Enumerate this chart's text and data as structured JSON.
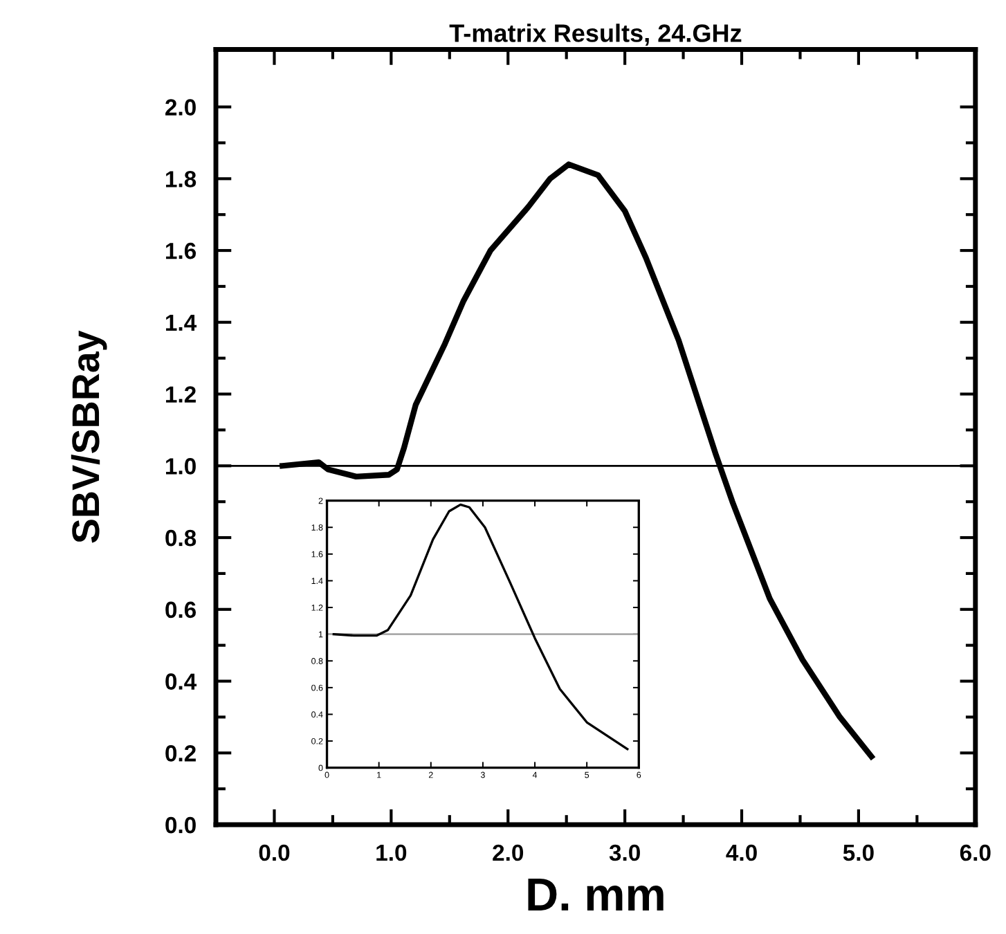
{
  "chart_data": [
    {
      "type": "line",
      "title": "T-matrix Results, 24.GHz",
      "xlabel": "D. mm",
      "ylabel": "SBV/SBRay",
      "x": [
        0.07,
        0.38,
        0.46,
        0.7,
        0.98,
        1.05,
        1.11,
        1.21,
        1.46,
        1.62,
        1.85,
        2.17,
        2.36,
        2.52,
        2.77,
        3.0,
        3.18,
        3.46,
        3.78,
        3.92,
        4.24,
        4.52,
        4.84,
        5.11
      ],
      "series": [
        {
          "color": "#000000",
          "values": [
            1.0,
            1.01,
            0.99,
            0.97,
            0.975,
            0.99,
            1.05,
            1.17,
            1.34,
            1.46,
            1.6,
            1.72,
            1.8,
            1.84,
            1.81,
            1.71,
            1.58,
            1.35,
            1.03,
            0.9,
            0.63,
            0.46,
            0.3,
            0.19
          ]
        }
      ],
      "xlim": [
        -0.5,
        6.0
      ],
      "xticks": [
        {
          "value": 0,
          "label": "0.0"
        },
        {
          "value": 1,
          "label": "1.0"
        },
        {
          "value": 2,
          "label": "2.0"
        },
        {
          "value": 3,
          "label": "3.0"
        },
        {
          "value": 4,
          "label": "4.0"
        },
        {
          "value": 5,
          "label": "5.0"
        },
        {
          "value": 6,
          "label": "6.0"
        }
      ],
      "ylim": [
        0,
        2.16
      ],
      "yticks": [
        {
          "value": 0,
          "label": "0.0"
        },
        0.2,
        0.4,
        0.6,
        0.8,
        {
          "value": 1,
          "label": "1.0"
        },
        1.2,
        1.4,
        1.6,
        1.8,
        {
          "value": 2,
          "label": "2.0"
        }
      ],
      "ref_lines": [
        {
          "axis": "y",
          "value": 1,
          "color": "#000000"
        }
      ],
      "grid": false,
      "legend": false,
      "marker": "none",
      "line_style": "solid"
    },
    {
      "type": "line",
      "x": [
        0.13,
        0.52,
        0.96,
        1.17,
        1.61,
        2.04,
        2.35,
        2.57,
        2.74,
        3.04,
        3.52,
        4.0,
        4.48,
        5.0,
        5.78
      ],
      "series": [
        {
          "color": "#000000",
          "values": [
            1.0,
            0.99,
            0.99,
            1.03,
            1.29,
            1.71,
            1.92,
            1.97,
            1.95,
            1.8,
            1.39,
            0.97,
            0.59,
            0.34,
            0.14
          ]
        }
      ],
      "xlim": [
        0,
        6
      ],
      "xticks": [
        0,
        1,
        2,
        3,
        4,
        5,
        6
      ],
      "ylim": [
        0,
        2
      ],
      "yticks": [
        0,
        0.2,
        0.4,
        0.6,
        0.8,
        1,
        1.2,
        1.4,
        1.6,
        1.8,
        2
      ],
      "ref_lines": [
        {
          "axis": "y",
          "value": 1,
          "color": "#aaaaaa"
        }
      ],
      "grid": false,
      "legend": false,
      "marker": "none",
      "line_style": "solid"
    }
  ]
}
